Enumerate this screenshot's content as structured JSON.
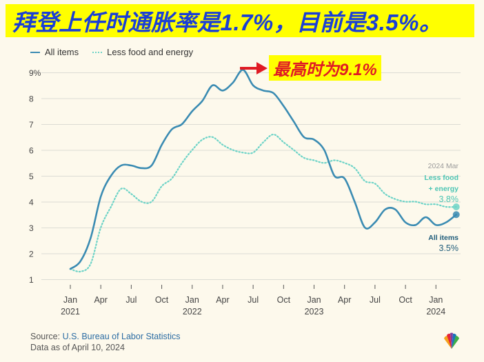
{
  "headline": "拜登上任时通胀率是1.7%，目前是3.5%。",
  "callout": "最高时为9.1%",
  "legend": {
    "all_items": "All items",
    "less_food": "Less food and energy"
  },
  "annotations": {
    "date": "2024 Mar",
    "core_label_line1": "Less food",
    "core_label_line2": "+ energy",
    "core_value": "3.8%",
    "all_label": "All items",
    "all_value": "3.5%"
  },
  "footer": {
    "source_prefix": "Source: ",
    "source_name": "U.S. Bureau of Labor Statistics",
    "data_as_of": "Data as of April 10, 2024"
  },
  "colors": {
    "all_items": "#3a8bb2",
    "core": "#6dd3c7",
    "headline_bg": "#ffff00",
    "headline_text": "#1a3fd6",
    "callout_text": "#e01b24"
  },
  "chart_data": {
    "type": "line",
    "title": "",
    "xlabel": "",
    "ylabel": "",
    "ylim": [
      1,
      9
    ],
    "yticks": [
      1,
      2,
      3,
      4,
      5,
      6,
      7,
      8,
      9
    ],
    "ytick_labels": [
      "1",
      "2",
      "3",
      "4",
      "5",
      "6",
      "7",
      "8",
      "9%"
    ],
    "xticks": [
      {
        "month": "2021-01",
        "label": "Jan",
        "year": "2021"
      },
      {
        "month": "2021-04",
        "label": "Apr",
        "year": ""
      },
      {
        "month": "2021-07",
        "label": "Jul",
        "year": ""
      },
      {
        "month": "2021-10",
        "label": "Oct",
        "year": ""
      },
      {
        "month": "2022-01",
        "label": "Jan",
        "year": "2022"
      },
      {
        "month": "2022-04",
        "label": "Apr",
        "year": ""
      },
      {
        "month": "2022-07",
        "label": "Jul",
        "year": ""
      },
      {
        "month": "2022-10",
        "label": "Oct",
        "year": ""
      },
      {
        "month": "2023-01",
        "label": "Jan",
        "year": "2023"
      },
      {
        "month": "2023-04",
        "label": "Apr",
        "year": ""
      },
      {
        "month": "2023-07",
        "label": "Jul",
        "year": ""
      },
      {
        "month": "2023-10",
        "label": "Oct",
        "year": ""
      },
      {
        "month": "2024-01",
        "label": "Jan",
        "year": "2024"
      }
    ],
    "grid": true,
    "legend_position": "top-left",
    "x": [
      "2021-01",
      "2021-02",
      "2021-03",
      "2021-04",
      "2021-05",
      "2021-06",
      "2021-07",
      "2021-08",
      "2021-09",
      "2021-10",
      "2021-11",
      "2021-12",
      "2022-01",
      "2022-02",
      "2022-03",
      "2022-04",
      "2022-05",
      "2022-06",
      "2022-07",
      "2022-08",
      "2022-09",
      "2022-10",
      "2022-11",
      "2022-12",
      "2023-01",
      "2023-02",
      "2023-03",
      "2023-04",
      "2023-05",
      "2023-06",
      "2023-07",
      "2023-08",
      "2023-09",
      "2023-10",
      "2023-11",
      "2023-12",
      "2024-01",
      "2024-02",
      "2024-03"
    ],
    "series": [
      {
        "name": "All items",
        "style": "solid",
        "values": [
          1.4,
          1.7,
          2.6,
          4.2,
          5.0,
          5.4,
          5.4,
          5.3,
          5.4,
          6.2,
          6.8,
          7.0,
          7.5,
          7.9,
          8.5,
          8.3,
          8.6,
          9.1,
          8.5,
          8.3,
          8.2,
          7.7,
          7.1,
          6.5,
          6.4,
          6.0,
          5.0,
          4.9,
          4.0,
          3.0,
          3.2,
          3.7,
          3.7,
          3.2,
          3.1,
          3.4,
          3.1,
          3.2,
          3.5
        ]
      },
      {
        "name": "Less food and energy",
        "style": "dotted",
        "values": [
          1.4,
          1.3,
          1.6,
          3.0,
          3.8,
          4.5,
          4.3,
          4.0,
          4.0,
          4.6,
          4.9,
          5.5,
          6.0,
          6.4,
          6.5,
          6.2,
          6.0,
          5.9,
          5.9,
          6.3,
          6.6,
          6.3,
          6.0,
          5.7,
          5.6,
          5.5,
          5.6,
          5.5,
          5.3,
          4.8,
          4.7,
          4.3,
          4.1,
          4.0,
          4.0,
          3.9,
          3.9,
          3.8,
          3.8
        ]
      }
    ]
  }
}
